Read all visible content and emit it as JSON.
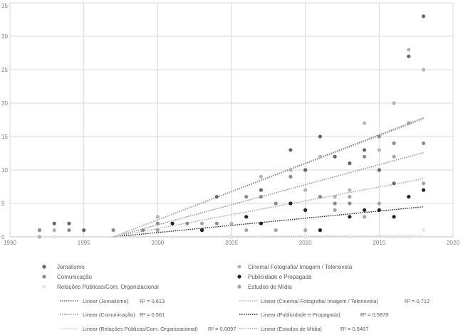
{
  "chart_data": {
    "type": "scatter",
    "title": "",
    "xlabel": "",
    "ylabel": "",
    "xlim": [
      1990,
      2020
    ],
    "ylim": [
      0,
      35
    ],
    "xticks": [
      "1990",
      "1995",
      "2000",
      "2005",
      "2010",
      "2015",
      "2020"
    ],
    "yticks": [
      "0",
      "5",
      "10",
      "15",
      "20",
      "25",
      "30",
      "35"
    ],
    "grid": true,
    "legend_position": "bottom",
    "series": [
      {
        "name": "Jornalismo",
        "color": "#666666",
        "points": [
          [
            1992,
            0
          ],
          [
            1993,
            2
          ],
          [
            1994,
            2
          ],
          [
            1995,
            1
          ],
          [
            2004,
            6
          ],
          [
            2007,
            7
          ],
          [
            2009,
            13
          ],
          [
            2010,
            10
          ],
          [
            2011,
            15
          ],
          [
            2012,
            12
          ],
          [
            2013,
            11
          ],
          [
            2014,
            13
          ],
          [
            2015,
            10
          ],
          [
            2016,
            8
          ],
          [
            2017,
            27
          ],
          [
            2018,
            33
          ]
        ]
      },
      {
        "name": "Cinema/ Fotografia/ Imagem / Telenovela",
        "color": "#b4b4b4",
        "points": [
          [
            1992,
            0
          ],
          [
            1993,
            1
          ],
          [
            2000,
            3
          ],
          [
            2003,
            1
          ],
          [
            2005,
            2
          ],
          [
            2007,
            9
          ],
          [
            2009,
            10
          ],
          [
            2010,
            7
          ],
          [
            2011,
            12
          ],
          [
            2012,
            6
          ],
          [
            2013,
            7
          ],
          [
            2014,
            17
          ],
          [
            2015,
            13
          ],
          [
            2016,
            20
          ],
          [
            2017,
            28
          ],
          [
            2018,
            25
          ]
        ]
      },
      {
        "name": "Comunicação",
        "color": "#8c8c8c",
        "points": [
          [
            1992,
            1
          ],
          [
            1994,
            1
          ],
          [
            1997,
            1
          ],
          [
            1999,
            1
          ],
          [
            2000,
            2
          ],
          [
            2002,
            2
          ],
          [
            2004,
            2
          ],
          [
            2006,
            6
          ],
          [
            2007,
            6
          ],
          [
            2008,
            5
          ],
          [
            2009,
            9
          ],
          [
            2011,
            6
          ],
          [
            2012,
            5
          ],
          [
            2013,
            5
          ],
          [
            2014,
            12
          ],
          [
            2015,
            15
          ],
          [
            2016,
            14
          ],
          [
            2017,
            17
          ],
          [
            2018,
            14
          ]
        ]
      },
      {
        "name": "Publicidade e Propagada",
        "color": "#222222",
        "points": [
          [
            2001,
            2
          ],
          [
            2003,
            1
          ],
          [
            2005,
            0
          ],
          [
            2006,
            3
          ],
          [
            2007,
            2
          ],
          [
            2009,
            5
          ],
          [
            2010,
            4
          ],
          [
            2011,
            1
          ],
          [
            2013,
            3
          ],
          [
            2014,
            4
          ],
          [
            2015,
            4
          ],
          [
            2016,
            3
          ],
          [
            2017,
            6
          ],
          [
            2018,
            7
          ]
        ]
      },
      {
        "name": "Relações Públicas/Com. Organizacional",
        "color": "#e6e6e6",
        "points": [
          [
            1993,
            0
          ],
          [
            2001,
            0
          ],
          [
            2005,
            0
          ],
          [
            2007,
            0
          ],
          [
            2010,
            0
          ],
          [
            2013,
            0
          ],
          [
            2016,
            0
          ],
          [
            2017,
            0
          ],
          [
            2018,
            1
          ]
        ]
      },
      {
        "name": "Estudos de Mídia",
        "color": "#a5a5a5",
        "points": [
          [
            2000,
            1
          ],
          [
            2003,
            2
          ],
          [
            2006,
            1
          ],
          [
            2008,
            1
          ],
          [
            2010,
            1
          ],
          [
            2012,
            4
          ],
          [
            2013,
            6
          ],
          [
            2014,
            3
          ],
          [
            2015,
            5
          ],
          [
            2016,
            12
          ],
          [
            2017,
            17
          ],
          [
            2018,
            8
          ]
        ]
      }
    ],
    "trendlines": [
      {
        "name": "Linear (Jornalismo)",
        "r2": "R² = 0,613",
        "color": "#666666",
        "from": [
          1997,
          0
        ],
        "to": [
          2018,
          17.8
        ]
      },
      {
        "name": "Linear (Cinema/ Fotografia/ Imagem / Telenovela)",
        "r2": "R² = 0,712",
        "color": "#b4b4b4",
        "from": [
          1997,
          0
        ],
        "to": [
          2018,
          17.6
        ]
      },
      {
        "name": "Linear (Comunicação)",
        "r2": "R² = 0,561",
        "color": "#8c8c8c",
        "from": [
          1997,
          0
        ],
        "to": [
          2018,
          12.6
        ]
      },
      {
        "name": "Linear (Publicidade e Propagada)",
        "r2": "R² = 0,5879",
        "color": "#222222",
        "from": [
          1997,
          0
        ],
        "to": [
          2018,
          4.5
        ]
      },
      {
        "name": "Linear (Relações Públicas/Com. Organizacional)",
        "r2": "R² = 0,0097",
        "color": "#e6e6e6",
        "from": [
          1997,
          0
        ],
        "to": [
          2018,
          0.2
        ]
      },
      {
        "name": "Linear (Estudos de Mídia)",
        "r2": "R² = 0,5467",
        "color": "#a5a5a5",
        "from": [
          1997,
          0
        ],
        "to": [
          2018,
          8.7
        ]
      }
    ]
  }
}
